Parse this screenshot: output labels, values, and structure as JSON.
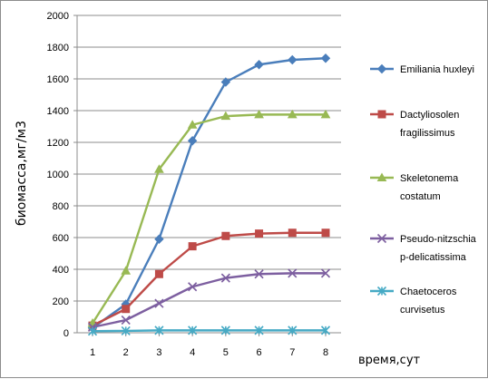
{
  "chart_data": {
    "type": "line",
    "xlabel": "время,сут",
    "ylabel": "биомасса,мг/м3",
    "x": [
      1,
      2,
      3,
      4,
      5,
      6,
      7,
      8
    ],
    "xticks": [
      "1",
      "2",
      "3",
      "4",
      "5",
      "6",
      "7",
      "8"
    ],
    "ylim": [
      0,
      2000
    ],
    "yticks": [
      "0",
      "200",
      "400",
      "600",
      "800",
      "1000",
      "1200",
      "1400",
      "1600",
      "1800",
      "2000"
    ],
    "grid": "horizontal",
    "legend_position": "right",
    "series": [
      {
        "name": "Emiliania huxleyi",
        "legend_lines": [
          "Emiliania huxleyi"
        ],
        "color": "#4a7ebb",
        "marker": "diamond",
        "values": [
          30,
          180,
          590,
          1210,
          1580,
          1690,
          1720,
          1730
        ]
      },
      {
        "name": "Dactyliosolen fragilissimus",
        "legend_lines": [
          "Dactyliosolen",
          "fragilissimus"
        ],
        "color": "#be4b48",
        "marker": "square",
        "values": [
          45,
          150,
          370,
          545,
          610,
          625,
          630,
          630
        ]
      },
      {
        "name": "Skeletonema costatum",
        "legend_lines": [
          "Skeletonema",
          "costatum"
        ],
        "color": "#98b954",
        "marker": "triangle",
        "values": [
          60,
          390,
          1030,
          1310,
          1365,
          1375,
          1375,
          1375
        ]
      },
      {
        "name": "Pseudo-nitzschia p-delicatissima",
        "legend_lines": [
          "Pseudo-nitzschia",
          "p-delicatissima"
        ],
        "color": "#7d5fa0",
        "marker": "x",
        "values": [
          35,
          80,
          185,
          290,
          345,
          370,
          375,
          375
        ]
      },
      {
        "name": "Chaetoceros curvisetus",
        "legend_lines": [
          "Chaetoceros",
          "curvisetus"
        ],
        "color": "#46aac5",
        "marker": "asterisk",
        "values": [
          10,
          12,
          15,
          15,
          15,
          15,
          15,
          15
        ]
      }
    ]
  }
}
